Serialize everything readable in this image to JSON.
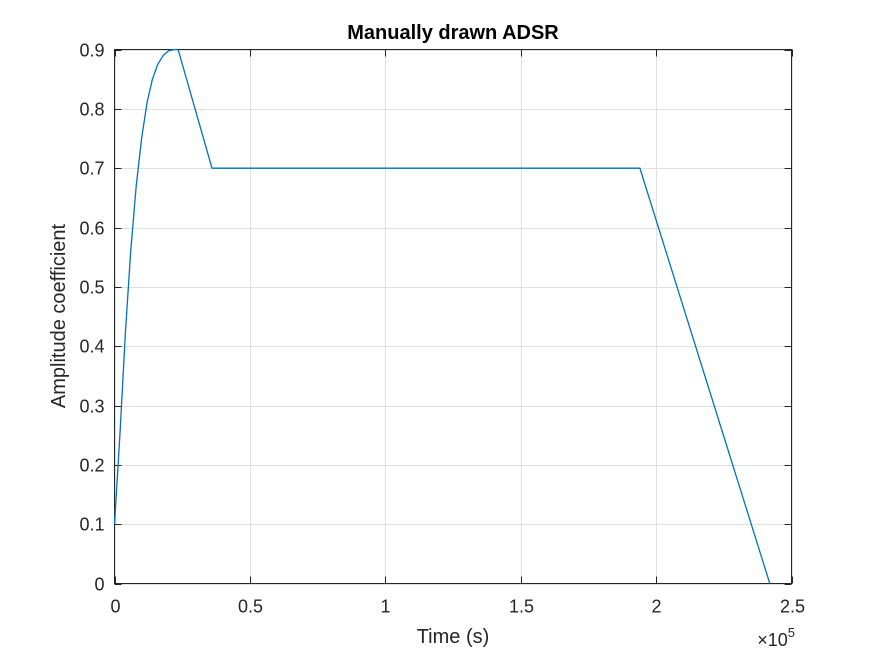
{
  "chart_data": {
    "type": "line",
    "title": "Manually drawn ADSR",
    "xlabel": "Time (s)",
    "ylabel": "Amplitude coefficient",
    "x_exponent_base": "×10",
    "x_exponent_power": "5",
    "xlim": [
      0,
      2.5
    ],
    "ylim": [
      0,
      0.9
    ],
    "x_ticks": [
      0,
      0.5,
      1,
      1.5,
      2,
      2.5
    ],
    "x_tick_labels": [
      "0",
      "0.5",
      "1",
      "1.5",
      "2",
      "2.5"
    ],
    "y_ticks": [
      0,
      0.1,
      0.2,
      0.3,
      0.4,
      0.5,
      0.6,
      0.7,
      0.8,
      0.9
    ],
    "y_tick_labels": [
      "0",
      "0.1",
      "0.2",
      "0.3",
      "0.4",
      "0.5",
      "0.6",
      "0.7",
      "0.8",
      "0.9"
    ],
    "grid": true,
    "line_color": "#0072BD",
    "series": [
      {
        "x": [
          0,
          0.02,
          0.04,
          0.06,
          0.08,
          0.1,
          0.12,
          0.14,
          0.16,
          0.18,
          0.2,
          0.22,
          0.235,
          0.36,
          1.94,
          2.42
        ],
        "y": [
          0.1,
          0.25,
          0.42,
          0.56,
          0.67,
          0.75,
          0.81,
          0.85,
          0.875,
          0.89,
          0.898,
          0.9,
          0.9,
          0.7,
          0.7,
          0
        ]
      }
    ]
  }
}
